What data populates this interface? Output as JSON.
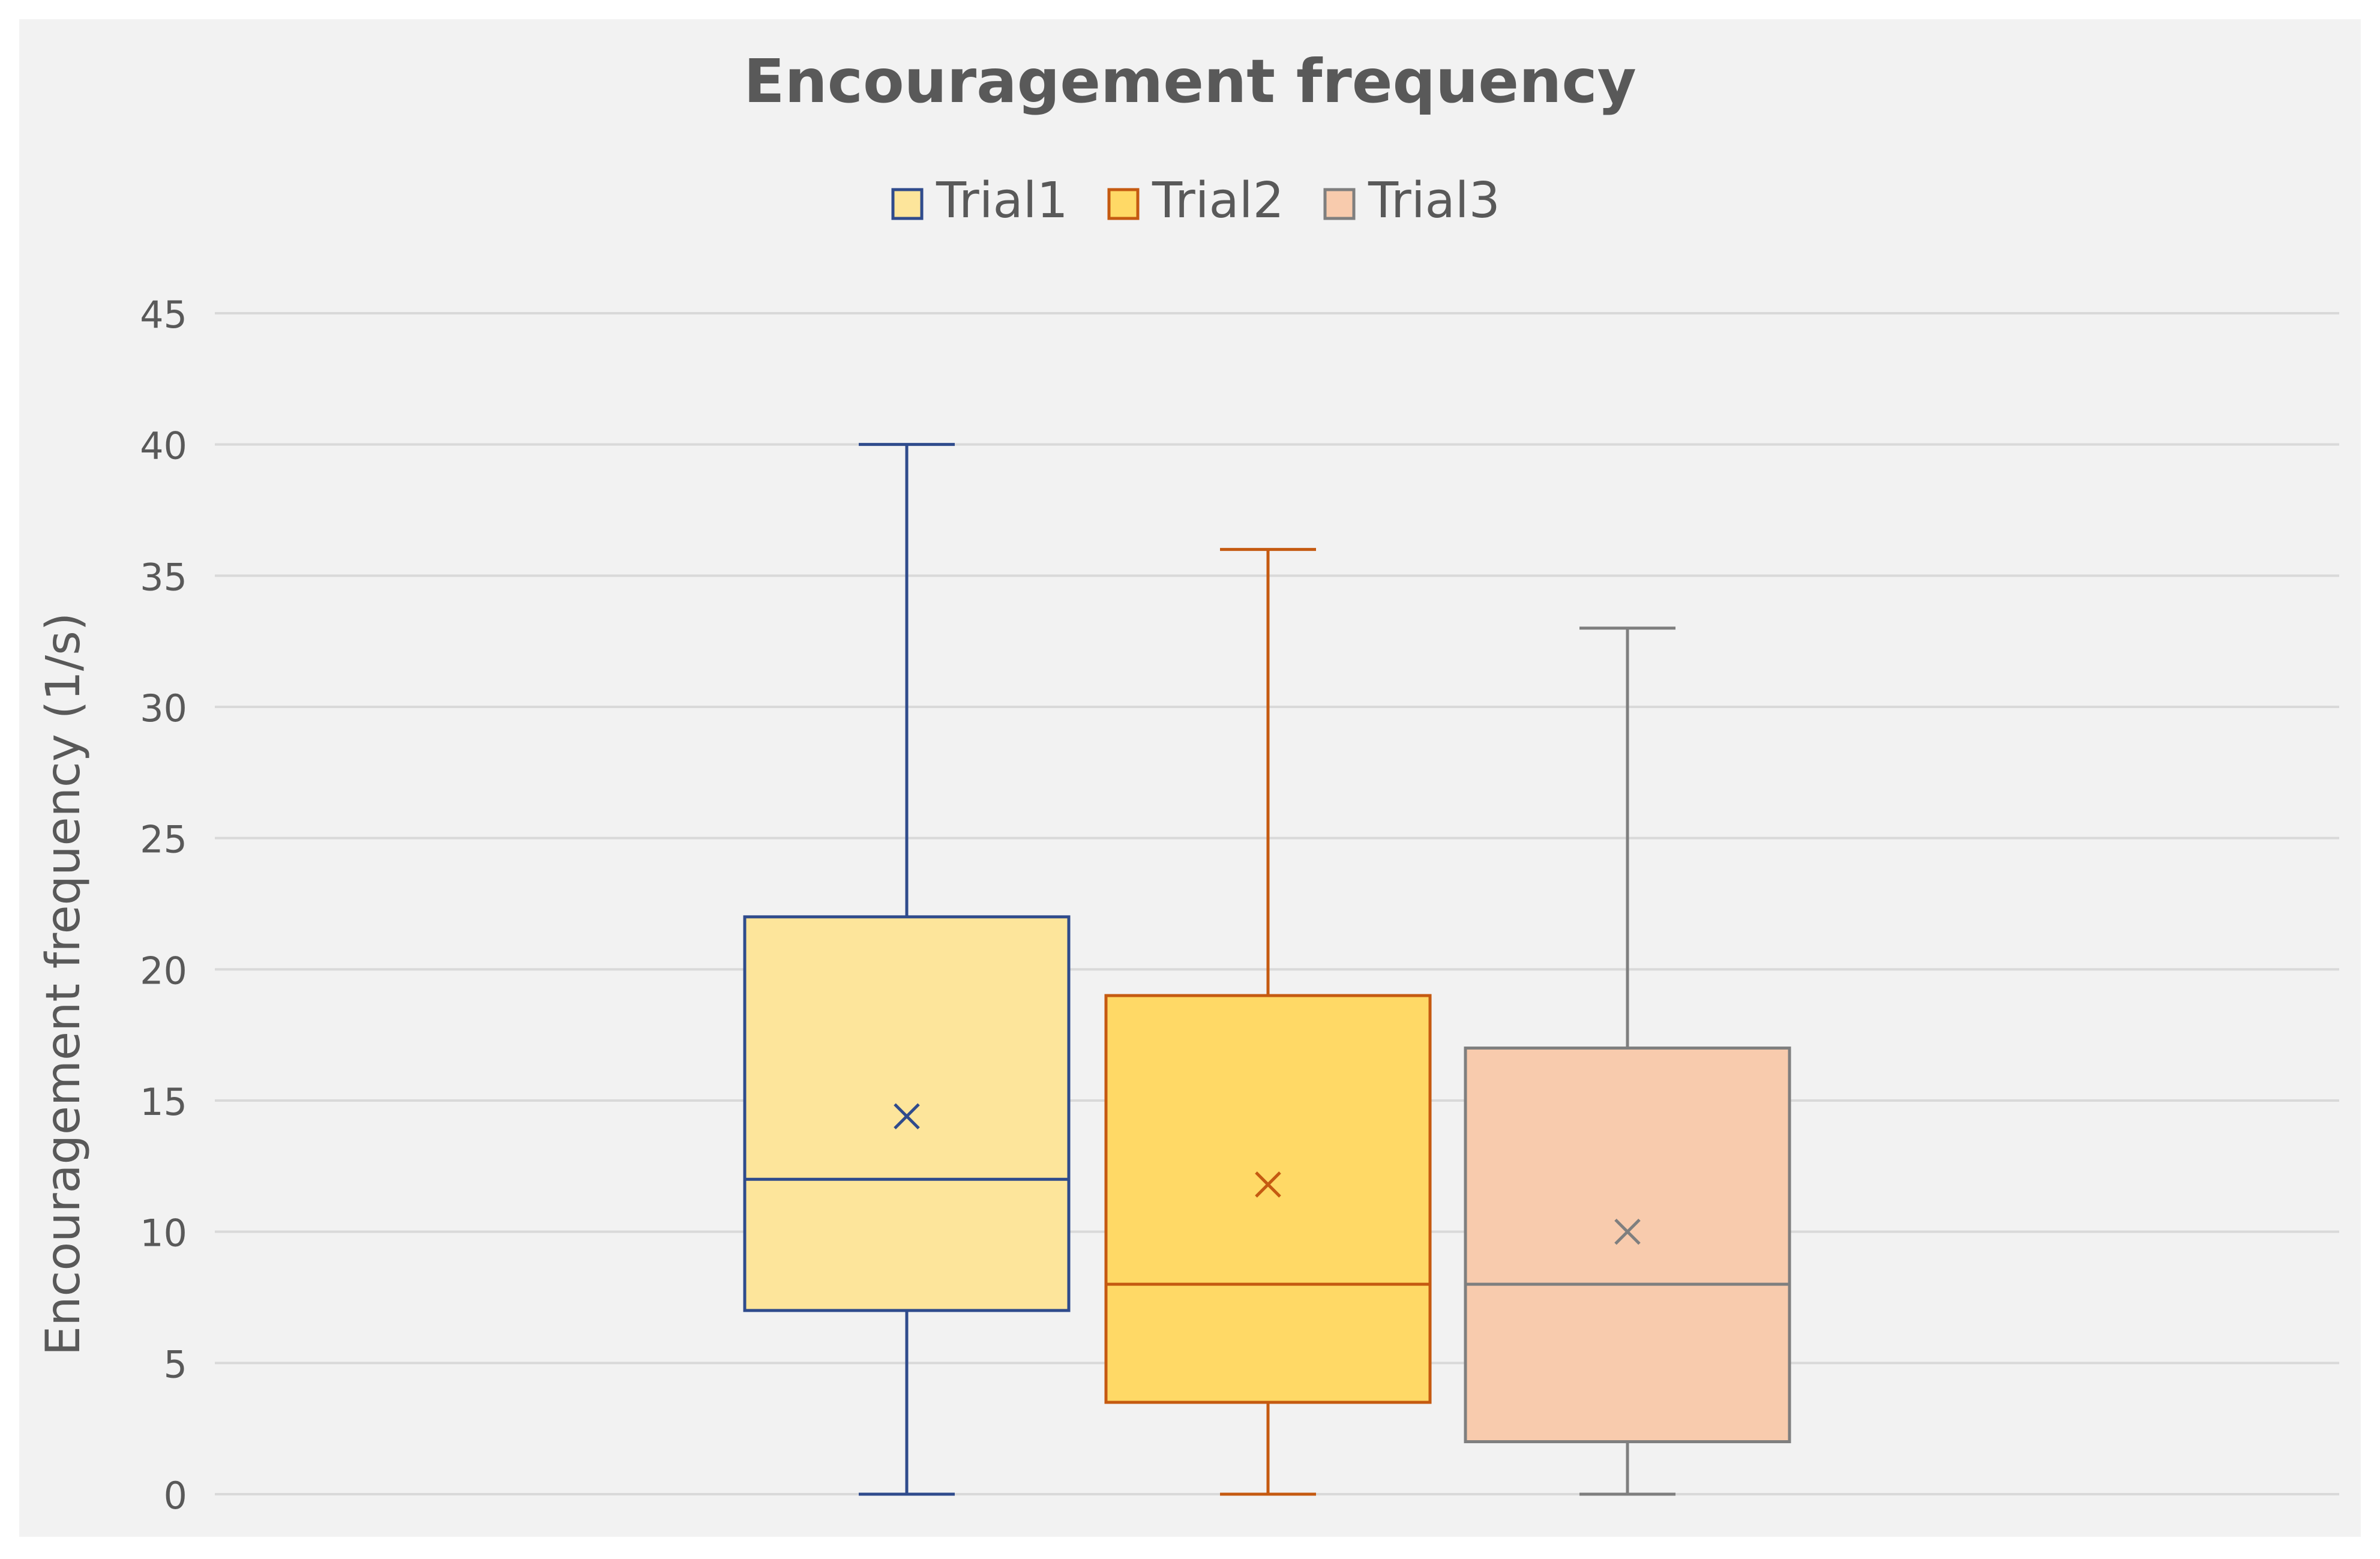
{
  "chart_data": {
    "type": "box",
    "title": "Encouragement frequency",
    "ylabel": "Encouragement frequency (1/s)",
    "xlabel": "",
    "ylim": [
      0,
      45
    ],
    "yticks": [
      0,
      5,
      10,
      15,
      20,
      25,
      30,
      35,
      40,
      45
    ],
    "grid": true,
    "legend_position": "top",
    "series": [
      {
        "name": "Trial1",
        "min": 0,
        "q1": 7,
        "median": 12,
        "q3": 22,
        "max": 40,
        "mean": 14.4,
        "fill": "#FDE59B",
        "stroke": "#2F4B8C"
      },
      {
        "name": "Trial2",
        "min": 0,
        "q1": 3.5,
        "median": 8,
        "q3": 19,
        "max": 36,
        "mean": 11.8,
        "fill": "#FFD966",
        "stroke": "#C55A11"
      },
      {
        "name": "Trial3",
        "min": 0,
        "q1": 2,
        "median": 8,
        "q3": 17,
        "max": 33,
        "mean": 10,
        "fill": "#F8CBAD",
        "stroke": "#7F7F7F"
      }
    ]
  }
}
